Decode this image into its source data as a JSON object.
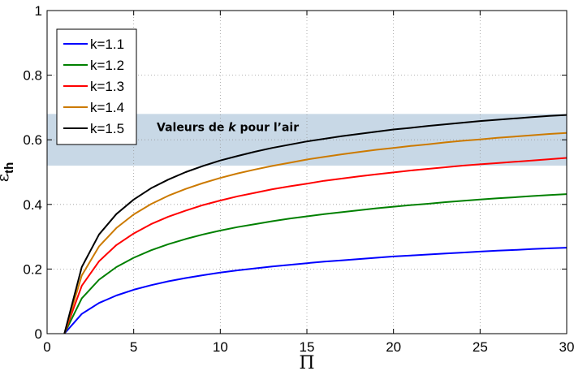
{
  "chart_data": {
    "type": "line",
    "title": "",
    "xlabel": "Π",
    "ylabel_main": "ε",
    "ylabel_sub": "th",
    "xlim": [
      0,
      30
    ],
    "ylim": [
      0,
      1
    ],
    "xticks": [
      0,
      5,
      10,
      15,
      20,
      25,
      30
    ],
    "yticks": [
      0,
      0.2,
      0.4,
      0.6,
      0.8,
      1
    ],
    "xtick_labels": [
      "0",
      "5",
      "10",
      "15",
      "20",
      "25",
      "30"
    ],
    "ytick_labels": [
      "0",
      "0.2",
      "0.4",
      "0.6",
      "0.8",
      "1"
    ],
    "grid": true,
    "legend_position": "top-left",
    "x": [
      1,
      2,
      3,
      4,
      5,
      6,
      7,
      8,
      9,
      10,
      11,
      12,
      13,
      14,
      15,
      16,
      17,
      18,
      19,
      20,
      21,
      22,
      23,
      24,
      25,
      26,
      27,
      28,
      29,
      30
    ],
    "series": [
      {
        "name": "k=1.1",
        "color": "#0000ff",
        "values": [
          0,
          0.061,
          0.095,
          0.118,
          0.136,
          0.15,
          0.162,
          0.172,
          0.181,
          0.189,
          0.196,
          0.202,
          0.208,
          0.213,
          0.218,
          0.223,
          0.227,
          0.231,
          0.235,
          0.239,
          0.242,
          0.245,
          0.248,
          0.251,
          0.254,
          0.257,
          0.259,
          0.262,
          0.264,
          0.266
        ]
      },
      {
        "name": "k=1.2",
        "color": "#008000",
        "values": [
          0,
          0.109,
          0.167,
          0.206,
          0.235,
          0.258,
          0.277,
          0.293,
          0.307,
          0.319,
          0.33,
          0.339,
          0.348,
          0.356,
          0.363,
          0.37,
          0.376,
          0.382,
          0.388,
          0.393,
          0.398,
          0.402,
          0.407,
          0.411,
          0.415,
          0.419,
          0.422,
          0.426,
          0.429,
          0.432
        ]
      },
      {
        "name": "k=1.3",
        "color": "#ff0000",
        "values": [
          0,
          0.148,
          0.224,
          0.274,
          0.31,
          0.339,
          0.362,
          0.381,
          0.398,
          0.412,
          0.425,
          0.436,
          0.447,
          0.456,
          0.464,
          0.473,
          0.48,
          0.487,
          0.493,
          0.499,
          0.505,
          0.51,
          0.515,
          0.52,
          0.524,
          0.528,
          0.532,
          0.536,
          0.54,
          0.544
        ]
      },
      {
        "name": "k=1.4",
        "color": "#cc7a00",
        "values": [
          0,
          0.18,
          0.27,
          0.327,
          0.369,
          0.401,
          0.427,
          0.448,
          0.466,
          0.482,
          0.496,
          0.508,
          0.519,
          0.529,
          0.539,
          0.547,
          0.555,
          0.562,
          0.569,
          0.575,
          0.581,
          0.586,
          0.592,
          0.597,
          0.601,
          0.606,
          0.61,
          0.614,
          0.618,
          0.621
        ]
      },
      {
        "name": "k=1.5",
        "color": "#000000",
        "values": [
          0,
          0.206,
          0.307,
          0.37,
          0.415,
          0.45,
          0.477,
          0.5,
          0.519,
          0.536,
          0.55,
          0.563,
          0.575,
          0.585,
          0.595,
          0.603,
          0.611,
          0.618,
          0.625,
          0.632,
          0.637,
          0.643,
          0.648,
          0.653,
          0.658,
          0.662,
          0.666,
          0.67,
          0.674,
          0.677
        ]
      }
    ],
    "annotations": [
      {
        "type": "band",
        "y_range": [
          0.52,
          0.68
        ],
        "color": "#c8d8e6",
        "label_prefix": "Valeurs de ",
        "label_italic": "k",
        "label_suffix": " pour l’air"
      }
    ]
  }
}
